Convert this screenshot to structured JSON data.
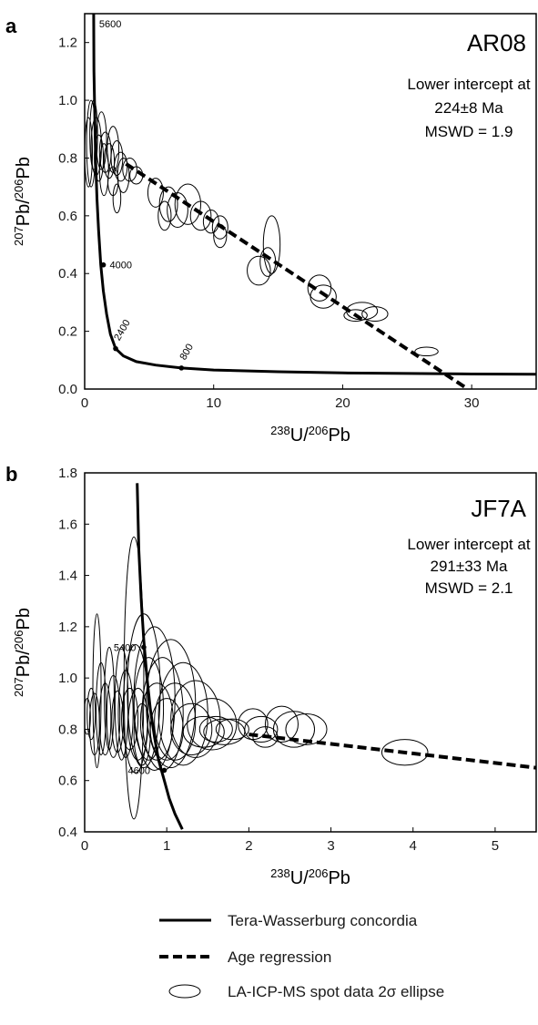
{
  "chart_data": [
    {
      "panel": "a",
      "type": "scatter",
      "sample": "AR08",
      "annotation": [
        "Lower intercept at",
        "224±8 Ma",
        "MSWD = 1.9"
      ],
      "xlabel": {
        "sup1": "238",
        "base1": "U/",
        "sup2": "206",
        "base2": "Pb"
      },
      "ylabel": {
        "sup1": "207",
        "base1": "Pb/",
        "sup2": "206",
        "base2": "Pb"
      },
      "xlim": [
        0,
        35
      ],
      "ylim": [
        0,
        1.3
      ],
      "xticks": [
        0,
        10,
        20,
        30
      ],
      "yticks": [
        0.0,
        0.2,
        0.4,
        0.6,
        0.8,
        1.0,
        1.2
      ],
      "ytick_labels": [
        "0.0",
        "0.2",
        "0.4",
        "0.6",
        "0.8",
        "1.0",
        "1.2"
      ],
      "concordia": [
        [
          0.7,
          1.3
        ],
        [
          0.72,
          1.1
        ],
        [
          0.78,
          0.95
        ],
        [
          0.85,
          0.8
        ],
        [
          0.95,
          0.66
        ],
        [
          1.08,
          0.55
        ],
        [
          1.25,
          0.43
        ],
        [
          1.45,
          0.34
        ],
        [
          1.7,
          0.26
        ],
        [
          2.0,
          0.19
        ],
        [
          2.4,
          0.14
        ],
        [
          3,
          0.115
        ],
        [
          4,
          0.095
        ],
        [
          5.5,
          0.083
        ],
        [
          7.5,
          0.073
        ],
        [
          10,
          0.066
        ],
        [
          15,
          0.06
        ],
        [
          20,
          0.056
        ],
        [
          25,
          0.054
        ],
        [
          30,
          0.052
        ],
        [
          35,
          0.051
        ]
      ],
      "concordia_ages": [
        {
          "label": "5600",
          "x": 0.7,
          "y": 1.3,
          "mark": false,
          "rotate": false
        },
        {
          "label": "4000",
          "x": 1.45,
          "y": 0.43,
          "mark": true,
          "rotate": false
        },
        {
          "label": "2400",
          "x": 2.4,
          "y": 0.14,
          "mark": true,
          "rotate": true
        },
        {
          "label": "800",
          "x": 7.5,
          "y": 0.073,
          "mark": true,
          "rotate": true
        }
      ],
      "regression": [
        [
          3.2,
          0.78
        ],
        [
          29.7,
          0.0
        ]
      ],
      "ellipses": [
        [
          0.3,
          0.82,
          0.3,
          0.12
        ],
        [
          0.5,
          0.85,
          0.35,
          0.15
        ],
        [
          0.7,
          0.88,
          0.3,
          0.12
        ],
        [
          0.9,
          0.84,
          0.4,
          0.1
        ],
        [
          1.1,
          0.8,
          0.35,
          0.08
        ],
        [
          1.3,
          0.86,
          0.4,
          0.1
        ],
        [
          1.6,
          0.82,
          0.45,
          0.07
        ],
        [
          1.9,
          0.79,
          0.4,
          0.06
        ],
        [
          2.2,
          0.83,
          0.45,
          0.08
        ],
        [
          2.5,
          0.8,
          0.45,
          0.06
        ],
        [
          2.8,
          0.77,
          0.5,
          0.05
        ],
        [
          3.0,
          0.74,
          0.45,
          0.06
        ],
        [
          1.5,
          0.76,
          0.35,
          0.09
        ],
        [
          2.2,
          0.72,
          0.4,
          0.05
        ],
        [
          3.5,
          0.76,
          0.55,
          0.04
        ],
        [
          4.0,
          0.74,
          0.5,
          0.03
        ],
        [
          2.5,
          0.66,
          0.3,
          0.05
        ],
        [
          5.5,
          0.68,
          0.6,
          0.05
        ],
        [
          6.5,
          0.64,
          0.7,
          0.06
        ],
        [
          7.2,
          0.62,
          0.8,
          0.06
        ],
        [
          6.2,
          0.6,
          0.5,
          0.05
        ],
        [
          8.0,
          0.64,
          1.0,
          0.07
        ],
        [
          9.0,
          0.6,
          0.8,
          0.05
        ],
        [
          9.8,
          0.58,
          0.6,
          0.04
        ],
        [
          10.5,
          0.56,
          0.6,
          0.04
        ],
        [
          10.5,
          0.53,
          0.5,
          0.04
        ],
        [
          14.5,
          0.5,
          0.65,
          0.1
        ],
        [
          14.2,
          0.44,
          0.6,
          0.05
        ],
        [
          13.5,
          0.41,
          0.9,
          0.05
        ],
        [
          18.2,
          0.35,
          0.9,
          0.045
        ],
        [
          18.5,
          0.32,
          1.0,
          0.04
        ],
        [
          21.5,
          0.27,
          1.2,
          0.03
        ],
        [
          22.5,
          0.26,
          1.0,
          0.025
        ],
        [
          21.0,
          0.255,
          0.9,
          0.02
        ],
        [
          26.5,
          0.13,
          0.9,
          0.015
        ]
      ]
    },
    {
      "panel": "b",
      "type": "scatter",
      "sample": "JF7A",
      "annotation": [
        "Lower intercept at",
        "291±33 Ma",
        "MSWD = 2.1"
      ],
      "xlabel": {
        "sup1": "238",
        "base1": "U/",
        "sup2": "206",
        "base2": "Pb"
      },
      "ylabel": {
        "sup1": "207",
        "base1": "Pb/",
        "sup2": "206",
        "base2": "Pb"
      },
      "xlim": [
        0,
        5.5
      ],
      "ylim": [
        0.4,
        1.8
      ],
      "xticks": [
        0,
        1,
        2,
        3,
        4,
        5
      ],
      "yticks": [
        0.4,
        0.6,
        0.8,
        1.0,
        1.2,
        1.4,
        1.6,
        1.8
      ],
      "ytick_labels": [
        "0.4",
        "0.6",
        "0.8",
        "1.0",
        "1.2",
        "1.4",
        "1.6",
        "1.8"
      ],
      "concordia": [
        [
          0.64,
          1.76
        ],
        [
          0.66,
          1.5
        ],
        [
          0.69,
          1.3
        ],
        [
          0.72,
          1.15
        ],
        [
          0.76,
          1.0
        ],
        [
          0.8,
          0.88
        ],
        [
          0.85,
          0.77
        ],
        [
          0.9,
          0.68
        ],
        [
          0.97,
          0.6
        ],
        [
          1.03,
          0.53
        ],
        [
          1.1,
          0.47
        ],
        [
          1.19,
          0.41
        ]
      ],
      "concordia_ages": [
        {
          "label": "5400",
          "x": 0.72,
          "y": 1.12,
          "mark": true,
          "rotate": false
        },
        {
          "label": "4600",
          "x": 0.97,
          "y": 0.64,
          "mark": true,
          "rotate": false
        }
      ],
      "regression": [
        [
          2.0,
          0.78
        ],
        [
          5.5,
          0.65
        ]
      ],
      "ellipses": [
        [
          0.03,
          0.85,
          0.04,
          0.07
        ],
        [
          0.08,
          0.86,
          0.05,
          0.1
        ],
        [
          0.12,
          0.82,
          0.06,
          0.12
        ],
        [
          0.15,
          0.95,
          0.05,
          0.3
        ],
        [
          0.2,
          0.88,
          0.06,
          0.18
        ],
        [
          0.25,
          0.84,
          0.07,
          0.14
        ],
        [
          0.3,
          0.92,
          0.06,
          0.2
        ],
        [
          0.35,
          0.85,
          0.08,
          0.16
        ],
        [
          0.4,
          0.83,
          0.07,
          0.12
        ],
        [
          0.45,
          0.9,
          0.08,
          0.22
        ],
        [
          0.5,
          0.86,
          0.09,
          0.17
        ],
        [
          0.55,
          0.84,
          0.1,
          0.12
        ],
        [
          0.6,
          1.0,
          0.12,
          0.55
        ],
        [
          0.62,
          0.88,
          0.15,
          0.25
        ],
        [
          0.65,
          0.82,
          0.12,
          0.14
        ],
        [
          0.7,
          0.78,
          0.1,
          0.12
        ],
        [
          0.72,
          0.95,
          0.2,
          0.3
        ],
        [
          0.78,
          0.88,
          0.18,
          0.2
        ],
        [
          0.85,
          0.92,
          0.25,
          0.28
        ],
        [
          0.88,
          0.83,
          0.2,
          0.15
        ],
        [
          0.95,
          0.86,
          0.25,
          0.22
        ],
        [
          1.0,
          0.8,
          0.2,
          0.12
        ],
        [
          1.05,
          0.9,
          0.3,
          0.25
        ],
        [
          1.1,
          0.83,
          0.25,
          0.15
        ],
        [
          1.2,
          0.86,
          0.3,
          0.2
        ],
        [
          1.3,
          0.8,
          0.25,
          0.1
        ],
        [
          1.35,
          0.84,
          0.3,
          0.15
        ],
        [
          1.45,
          0.79,
          0.25,
          0.06
        ],
        [
          1.55,
          0.82,
          0.3,
          0.1
        ],
        [
          1.6,
          0.8,
          0.2,
          0.05
        ],
        [
          1.7,
          0.79,
          0.25,
          0.05
        ],
        [
          1.8,
          0.8,
          0.2,
          0.04
        ],
        [
          2.05,
          0.82,
          0.18,
          0.06
        ],
        [
          2.15,
          0.8,
          0.2,
          0.05
        ],
        [
          2.2,
          0.77,
          0.15,
          0.04
        ],
        [
          2.4,
          0.82,
          0.2,
          0.07
        ],
        [
          2.55,
          0.8,
          0.25,
          0.07
        ],
        [
          2.7,
          0.8,
          0.25,
          0.06
        ],
        [
          3.9,
          0.71,
          0.28,
          0.05
        ]
      ]
    }
  ],
  "legend": {
    "concordia": "Tera-Wasserburg concordia",
    "regression": "Age regression",
    "ellipse": "LA-ICP-MS spot data 2σ ellipse"
  }
}
